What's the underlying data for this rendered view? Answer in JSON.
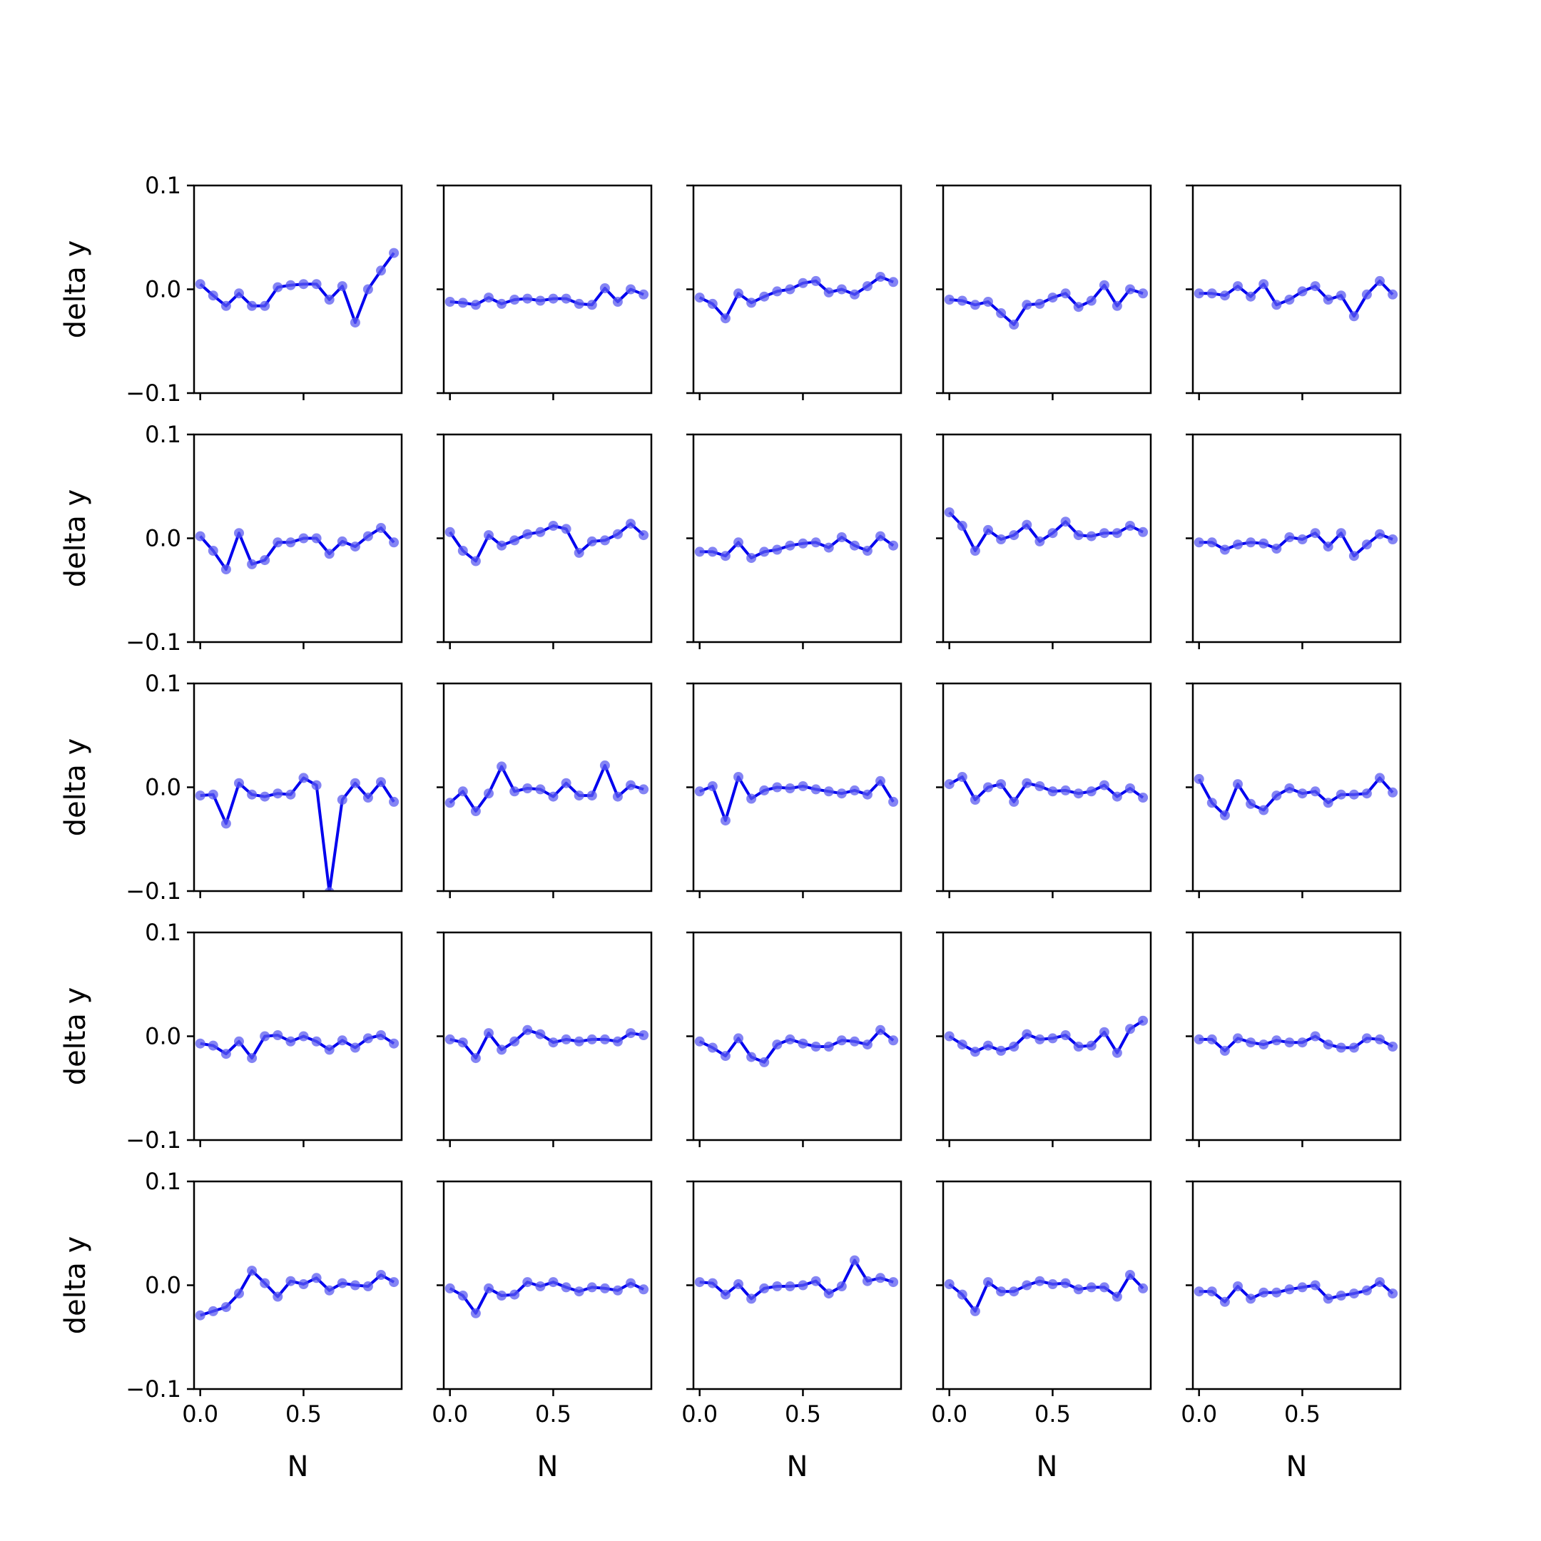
{
  "chart_data": {
    "type": "line",
    "layout": "small-multiples 5x5",
    "grid": false,
    "legend": "none",
    "xlabel": "N",
    "ylabel": "delta y",
    "xlim": [
      -0.03,
      0.975
    ],
    "ylim": [
      -0.1,
      0.1
    ],
    "xticks": [
      0.0,
      0.5
    ],
    "xtick_labels": [
      "0.0",
      "0.5"
    ],
    "yticks": [
      -0.1,
      0.0,
      0.1
    ],
    "ytick_labels": [
      "−0.1",
      "0.0",
      "0.1"
    ],
    "colors": {
      "line": "#0000ee",
      "marker": "#5b5bf0"
    },
    "x": [
      0.0,
      0.0625,
      0.125,
      0.1875,
      0.25,
      0.3125,
      0.375,
      0.4375,
      0.5,
      0.5625,
      0.625,
      0.6875,
      0.75,
      0.8125,
      0.875,
      0.9375
    ],
    "panels": [
      {
        "y": [
          0.005,
          -0.006,
          -0.016,
          -0.004,
          -0.016,
          -0.016,
          0.002,
          0.004,
          0.005,
          0.005,
          -0.01,
          0.003,
          -0.032,
          0.0,
          0.018,
          0.035
        ]
      },
      {
        "y": [
          -0.012,
          -0.013,
          -0.015,
          -0.008,
          -0.014,
          -0.01,
          -0.009,
          -0.011,
          -0.009,
          -0.009,
          -0.014,
          -0.015,
          0.001,
          -0.012,
          0.0,
          -0.005
        ]
      },
      {
        "y": [
          -0.008,
          -0.014,
          -0.028,
          -0.004,
          -0.013,
          -0.007,
          -0.002,
          0.0,
          0.006,
          0.008,
          -0.003,
          0.0,
          -0.005,
          0.003,
          0.012,
          0.007
        ]
      },
      {
        "y": [
          -0.01,
          -0.011,
          -0.015,
          -0.012,
          -0.023,
          -0.034,
          -0.015,
          -0.014,
          -0.008,
          -0.004,
          -0.017,
          -0.011,
          0.004,
          -0.016,
          0.0,
          -0.004
        ]
      },
      {
        "y": [
          -0.004,
          -0.004,
          -0.006,
          0.003,
          -0.007,
          0.005,
          -0.015,
          -0.01,
          -0.002,
          0.003,
          -0.01,
          -0.006,
          -0.026,
          -0.005,
          0.008,
          -0.005
        ]
      },
      {
        "y": [
          0.002,
          -0.012,
          -0.03,
          0.005,
          -0.025,
          -0.021,
          -0.004,
          -0.004,
          0.0,
          0.0,
          -0.015,
          -0.003,
          -0.008,
          0.002,
          0.01,
          -0.004
        ]
      },
      {
        "y": [
          0.006,
          -0.012,
          -0.022,
          0.003,
          -0.007,
          -0.002,
          0.004,
          0.006,
          0.012,
          0.009,
          -0.014,
          -0.003,
          -0.002,
          0.004,
          0.014,
          0.003
        ]
      },
      {
        "y": [
          -0.013,
          -0.013,
          -0.017,
          -0.004,
          -0.019,
          -0.013,
          -0.011,
          -0.007,
          -0.005,
          -0.004,
          -0.009,
          0.001,
          -0.007,
          -0.012,
          0.002,
          -0.007
        ]
      },
      {
        "y": [
          0.025,
          0.012,
          -0.012,
          0.008,
          -0.001,
          0.003,
          0.013,
          -0.003,
          0.005,
          0.016,
          0.003,
          0.002,
          0.005,
          0.005,
          0.012,
          0.006
        ]
      },
      {
        "y": [
          -0.004,
          -0.004,
          -0.011,
          -0.006,
          -0.004,
          -0.005,
          -0.01,
          0.001,
          -0.001,
          0.005,
          -0.008,
          0.005,
          -0.017,
          -0.006,
          0.004,
          -0.001
        ]
      },
      {
        "y": [
          -0.008,
          -0.007,
          -0.035,
          0.004,
          -0.007,
          -0.009,
          -0.006,
          -0.007,
          0.009,
          0.002,
          -0.101,
          -0.012,
          0.004,
          -0.01,
          0.005,
          -0.014
        ]
      },
      {
        "y": [
          -0.015,
          -0.004,
          -0.023,
          -0.006,
          0.02,
          -0.004,
          -0.001,
          -0.002,
          -0.009,
          0.004,
          -0.008,
          -0.008,
          0.021,
          -0.009,
          0.002,
          -0.002
        ]
      },
      {
        "y": [
          -0.004,
          0.001,
          -0.032,
          0.01,
          -0.011,
          -0.003,
          0.0,
          -0.001,
          0.001,
          -0.002,
          -0.004,
          -0.006,
          -0.003,
          -0.007,
          0.006,
          -0.014
        ]
      },
      {
        "y": [
          0.003,
          0.01,
          -0.012,
          0.0,
          0.003,
          -0.014,
          0.004,
          0.001,
          -0.004,
          -0.003,
          -0.006,
          -0.004,
          0.002,
          -0.009,
          -0.001,
          -0.01
        ]
      },
      {
        "y": [
          0.008,
          -0.015,
          -0.027,
          0.003,
          -0.016,
          -0.022,
          -0.008,
          -0.001,
          -0.006,
          -0.004,
          -0.015,
          -0.007,
          -0.007,
          -0.006,
          0.009,
          -0.005
        ]
      },
      {
        "y": [
          -0.007,
          -0.009,
          -0.017,
          -0.005,
          -0.021,
          0.0,
          0.001,
          -0.005,
          0.0,
          -0.005,
          -0.013,
          -0.004,
          -0.011,
          -0.002,
          0.001,
          -0.007
        ]
      },
      {
        "y": [
          -0.003,
          -0.006,
          -0.021,
          0.003,
          -0.013,
          -0.005,
          0.006,
          0.002,
          -0.006,
          -0.003,
          -0.005,
          -0.003,
          -0.003,
          -0.005,
          0.003,
          0.001
        ]
      },
      {
        "y": [
          -0.005,
          -0.011,
          -0.019,
          -0.002,
          -0.02,
          -0.025,
          -0.008,
          -0.003,
          -0.007,
          -0.01,
          -0.01,
          -0.004,
          -0.005,
          -0.008,
          0.006,
          -0.004
        ]
      },
      {
        "y": [
          0.0,
          -0.008,
          -0.015,
          -0.009,
          -0.014,
          -0.01,
          0.002,
          -0.003,
          -0.002,
          0.001,
          -0.01,
          -0.009,
          0.004,
          -0.016,
          0.007,
          0.015
        ]
      },
      {
        "y": [
          -0.003,
          -0.003,
          -0.014,
          -0.002,
          -0.006,
          -0.008,
          -0.004,
          -0.006,
          -0.006,
          0.0,
          -0.008,
          -0.011,
          -0.011,
          -0.002,
          -0.003,
          -0.01
        ]
      },
      {
        "y": [
          -0.029,
          -0.025,
          -0.021,
          -0.008,
          0.014,
          0.002,
          -0.011,
          0.004,
          0.001,
          0.007,
          -0.005,
          0.002,
          0.0,
          -0.001,
          0.01,
          0.003
        ]
      },
      {
        "y": [
          -0.003,
          -0.01,
          -0.027,
          -0.003,
          -0.01,
          -0.009,
          0.003,
          -0.001,
          0.003,
          -0.002,
          -0.006,
          -0.002,
          -0.003,
          -0.005,
          0.002,
          -0.004
        ]
      },
      {
        "y": [
          0.003,
          0.002,
          -0.009,
          0.001,
          -0.013,
          -0.003,
          -0.001,
          -0.001,
          0.0,
          0.004,
          -0.008,
          -0.001,
          0.024,
          0.004,
          0.007,
          0.003
        ]
      },
      {
        "y": [
          0.001,
          -0.009,
          -0.025,
          0.003,
          -0.006,
          -0.006,
          0.0,
          0.004,
          0.001,
          0.002,
          -0.004,
          -0.002,
          -0.002,
          -0.011,
          0.01,
          -0.003
        ]
      },
      {
        "y": [
          -0.006,
          -0.006,
          -0.016,
          -0.001,
          -0.013,
          -0.007,
          -0.007,
          -0.004,
          -0.002,
          0.0,
          -0.013,
          -0.01,
          -0.008,
          -0.005,
          0.003,
          -0.008
        ]
      }
    ]
  }
}
